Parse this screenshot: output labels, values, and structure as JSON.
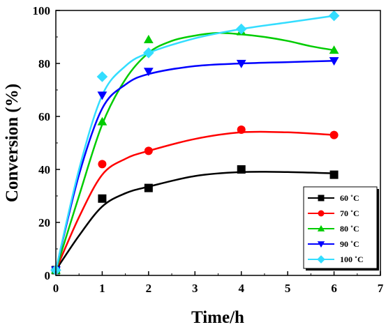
{
  "chart_data": {
    "type": "scatter",
    "xlabel": "Time/h",
    "ylabel": "Conversion (%)",
    "xlim": [
      0,
      7
    ],
    "ylim": [
      0,
      100
    ],
    "xticks": [
      0,
      1,
      2,
      3,
      4,
      5,
      6,
      7
    ],
    "yticks": [
      0,
      20,
      40,
      60,
      80,
      100
    ],
    "grid": false,
    "legend_position": "bottom-right",
    "series": [
      {
        "name": "60 ˚C",
        "marker": "square",
        "color": "#000000",
        "x": [
          0,
          1,
          2,
          4,
          6
        ],
        "y": [
          2,
          29,
          33,
          40,
          38
        ],
        "fit": [
          [
            0,
            2
          ],
          [
            0.5,
            15
          ],
          [
            1,
            26
          ],
          [
            1.5,
            31
          ],
          [
            2,
            33.5
          ],
          [
            3,
            37.5
          ],
          [
            4,
            39
          ],
          [
            5,
            39
          ],
          [
            6,
            38.5
          ]
        ]
      },
      {
        "name": "70 ˚C",
        "marker": "circle",
        "color": "#ff0000",
        "x": [
          0,
          1,
          2,
          4,
          6
        ],
        "y": [
          2,
          42,
          47,
          55,
          53
        ],
        "fit": [
          [
            0,
            2
          ],
          [
            0.5,
            22
          ],
          [
            1,
            38
          ],
          [
            1.5,
            44
          ],
          [
            2,
            47
          ],
          [
            3,
            51.5
          ],
          [
            4,
            54
          ],
          [
            5,
            54
          ],
          [
            6,
            53
          ]
        ]
      },
      {
        "name": "80 ˚C",
        "marker": "triangle-up",
        "color": "#00cc00",
        "x": [
          0,
          1,
          2,
          4,
          6
        ],
        "y": [
          2,
          58,
          89,
          92,
          85
        ],
        "fit": [
          [
            0,
            2
          ],
          [
            0.5,
            30
          ],
          [
            1,
            57
          ],
          [
            1.5,
            74
          ],
          [
            2,
            84
          ],
          [
            2.5,
            88.5
          ],
          [
            3,
            90.5
          ],
          [
            3.5,
            91.5
          ],
          [
            4,
            91
          ],
          [
            4.5,
            90
          ],
          [
            5,
            88.5
          ],
          [
            5.5,
            86.5
          ],
          [
            6,
            85
          ]
        ]
      },
      {
        "name": "90 ˚C",
        "marker": "triangle-down",
        "color": "#0000ff",
        "x": [
          0,
          1,
          2,
          4,
          6
        ],
        "y": [
          2,
          68,
          77,
          80,
          81
        ],
        "fit": [
          [
            0,
            2
          ],
          [
            0.5,
            38
          ],
          [
            1,
            63
          ],
          [
            1.5,
            72
          ],
          [
            2,
            76
          ],
          [
            3,
            79
          ],
          [
            4,
            80
          ],
          [
            5,
            80.5
          ],
          [
            6,
            81
          ]
        ]
      },
      {
        "name": "100 ˚C",
        "marker": "diamond",
        "color": "#33ddff",
        "x": [
          0,
          1,
          2,
          4,
          6
        ],
        "y": [
          2,
          75,
          84,
          93,
          98
        ],
        "fit": [
          [
            0,
            2
          ],
          [
            0.5,
            40
          ],
          [
            1,
            68
          ],
          [
            1.5,
            79
          ],
          [
            2,
            84
          ],
          [
            3,
            89.5
          ],
          [
            4,
            93
          ],
          [
            5,
            95.5
          ],
          [
            6,
            98
          ]
        ]
      }
    ]
  }
}
